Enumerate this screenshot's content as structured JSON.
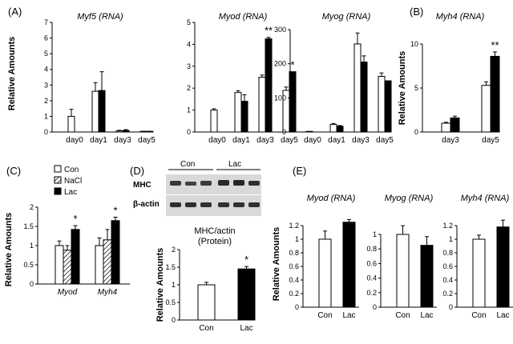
{
  "figure": {
    "panel_labels": [
      "(A)",
      "(B)",
      "(C)",
      "(D)",
      "(E)"
    ],
    "colors": {
      "con": "#ffffff",
      "lac": "#000000",
      "nacl_hatch": "#000000",
      "axis": "#000000",
      "blot_bg": "#d9d9d9",
      "blot_band": "#303030"
    }
  },
  "blot": {
    "lanes_con": "Con",
    "lanes_lac": "Lac",
    "rows": [
      "MHC",
      "β-actin"
    ]
  },
  "chart_data": [
    {
      "id": "A1",
      "type": "bar",
      "title": "Myf5 (RNA)",
      "ylabel": "Relative Amounts",
      "categories": [
        "day0",
        "day1",
        "day3",
        "day5"
      ],
      "ylim": [
        0,
        7
      ],
      "yticks": [
        "0",
        "1",
        "2",
        "3",
        "4",
        "5",
        "6",
        "7"
      ],
      "series": [
        {
          "name": "Con",
          "values": [
            1.0,
            2.6,
            0.07,
            0.03
          ],
          "errors": [
            0.45,
            0.55,
            0.04,
            0.02
          ]
        },
        {
          "name": "Lac",
          "values": [
            null,
            2.65,
            0.1,
            0.03
          ],
          "errors": [
            null,
            1.2,
            0.05,
            0.02
          ]
        }
      ],
      "annotations": []
    },
    {
      "id": "A2",
      "type": "bar",
      "title": "Myod (RNA)",
      "ylabel": "",
      "categories": [
        "day0",
        "day1",
        "day3",
        "day5"
      ],
      "ylim": [
        0,
        5
      ],
      "yticks": [
        "0",
        "1",
        "2",
        "3",
        "4",
        "5"
      ],
      "series": [
        {
          "name": "Con",
          "values": [
            1.0,
            1.8,
            2.5,
            1.9
          ],
          "errors": [
            0.06,
            0.08,
            0.1,
            0.15
          ]
        },
        {
          "name": "Lac",
          "values": [
            null,
            1.4,
            4.25,
            2.75
          ],
          "errors": [
            null,
            0.3,
            0.07,
            0.0
          ]
        }
      ],
      "annotations": [
        {
          "category": "day3",
          "text": "**"
        },
        {
          "category": "day5",
          "text": "*"
        }
      ]
    },
    {
      "id": "A3",
      "type": "bar",
      "title": "Myog (RNA)",
      "ylabel": "",
      "categories": [
        "day0",
        "day1",
        "day3",
        "day5"
      ],
      "ylim": [
        0,
        300
      ],
      "yticks": [
        "0",
        "100",
        "200",
        "300"
      ],
      "series": [
        {
          "name": "Con",
          "values": [
            1,
            22,
            258,
            163
          ],
          "errors": [
            0,
            3,
            32,
            10
          ]
        },
        {
          "name": "Lac",
          "values": [
            null,
            17,
            205,
            150
          ],
          "errors": [
            null,
            2,
            18,
            0
          ]
        }
      ],
      "annotations": []
    },
    {
      "id": "B",
      "type": "bar",
      "title": "Myh4 (RNA)",
      "ylabel": "Relative Amounts",
      "categories": [
        "day3",
        "day5"
      ],
      "ylim": [
        0,
        10
      ],
      "yticks": [
        "0",
        "5",
        "10"
      ],
      "series": [
        {
          "name": "Con",
          "values": [
            1.0,
            5.3
          ],
          "errors": [
            0.1,
            0.4
          ]
        },
        {
          "name": "Lac",
          "values": [
            1.6,
            8.6
          ],
          "errors": [
            0.2,
            0.5
          ]
        }
      ],
      "annotations": [
        {
          "category": "day5",
          "text": "**"
        }
      ]
    },
    {
      "id": "C",
      "type": "bar",
      "title": "",
      "ylabel": "Relative Amounts",
      "categories": [
        "Myod",
        "Myh4"
      ],
      "ylim": [
        0,
        2
      ],
      "yticks": [
        "0",
        "0.5",
        "1",
        "1.5",
        "2"
      ],
      "legend": [
        "Con",
        "NaCl",
        "Lac"
      ],
      "series": [
        {
          "name": "Con",
          "values": [
            1.0,
            1.0
          ],
          "errors": [
            0.12,
            0.2
          ]
        },
        {
          "name": "NaCl",
          "values": [
            0.88,
            1.15
          ],
          "errors": [
            0.12,
            0.27
          ]
        },
        {
          "name": "Lac",
          "values": [
            1.42,
            1.65
          ],
          "errors": [
            0.1,
            0.09
          ]
        }
      ],
      "annotations": [
        {
          "category": "Myod",
          "text": "*"
        },
        {
          "category": "Myh4",
          "text": "*"
        }
      ]
    },
    {
      "id": "D",
      "type": "bar",
      "title": "MHC/actin (Protein)",
      "title_line1": "MHC/actin",
      "title_line2": "(Protein)",
      "ylabel": "Relative Amounts",
      "categories": [
        "Con",
        "Lac"
      ],
      "ylim": [
        0,
        2
      ],
      "yticks": [
        "0",
        "0.5",
        "1",
        "1.5",
        "2"
      ],
      "series": [
        {
          "name": "value",
          "values": [
            1.0,
            1.45
          ],
          "errors": [
            0.07,
            0.07
          ]
        }
      ],
      "annotations": [
        {
          "category": "Lac",
          "text": "*"
        }
      ]
    },
    {
      "id": "E1",
      "type": "bar",
      "title": "Myod (RNA)",
      "ylabel": "Relative Amounts",
      "categories": [
        "Con",
        "Lac"
      ],
      "ylim": [
        0,
        1.2
      ],
      "yticks": [
        "0",
        "0.2",
        "0.4",
        "0.6",
        "0.8",
        "1",
        "1.2"
      ],
      "series": [
        {
          "name": "value",
          "values": [
            1.0,
            1.25
          ],
          "errors": [
            0.12,
            0.04
          ]
        }
      ],
      "annotations": []
    },
    {
      "id": "E2",
      "type": "bar",
      "title": "Myog (RNA)",
      "ylabel": "",
      "categories": [
        "Con",
        "Lac"
      ],
      "ylim": [
        0,
        1
      ],
      "yticks": [
        "0",
        "0.2",
        "0.4",
        "0.6",
        "0.8",
        "1"
      ],
      "series": [
        {
          "name": "value",
          "values": [
            1.0,
            0.85
          ],
          "errors": [
            0.12,
            0.12
          ]
        }
      ],
      "annotations": []
    },
    {
      "id": "E3",
      "type": "bar",
      "title": "Myh4 (RNA)",
      "ylabel": "",
      "categories": [
        "Con",
        "Lac"
      ],
      "ylim": [
        0,
        1.2
      ],
      "yticks": [
        "0",
        "0.2",
        "0.4",
        "0.6",
        "0.8",
        "1",
        "1.2"
      ],
      "series": [
        {
          "name": "value",
          "values": [
            1.0,
            1.18
          ],
          "errors": [
            0.06,
            0.1
          ]
        }
      ],
      "annotations": []
    }
  ]
}
